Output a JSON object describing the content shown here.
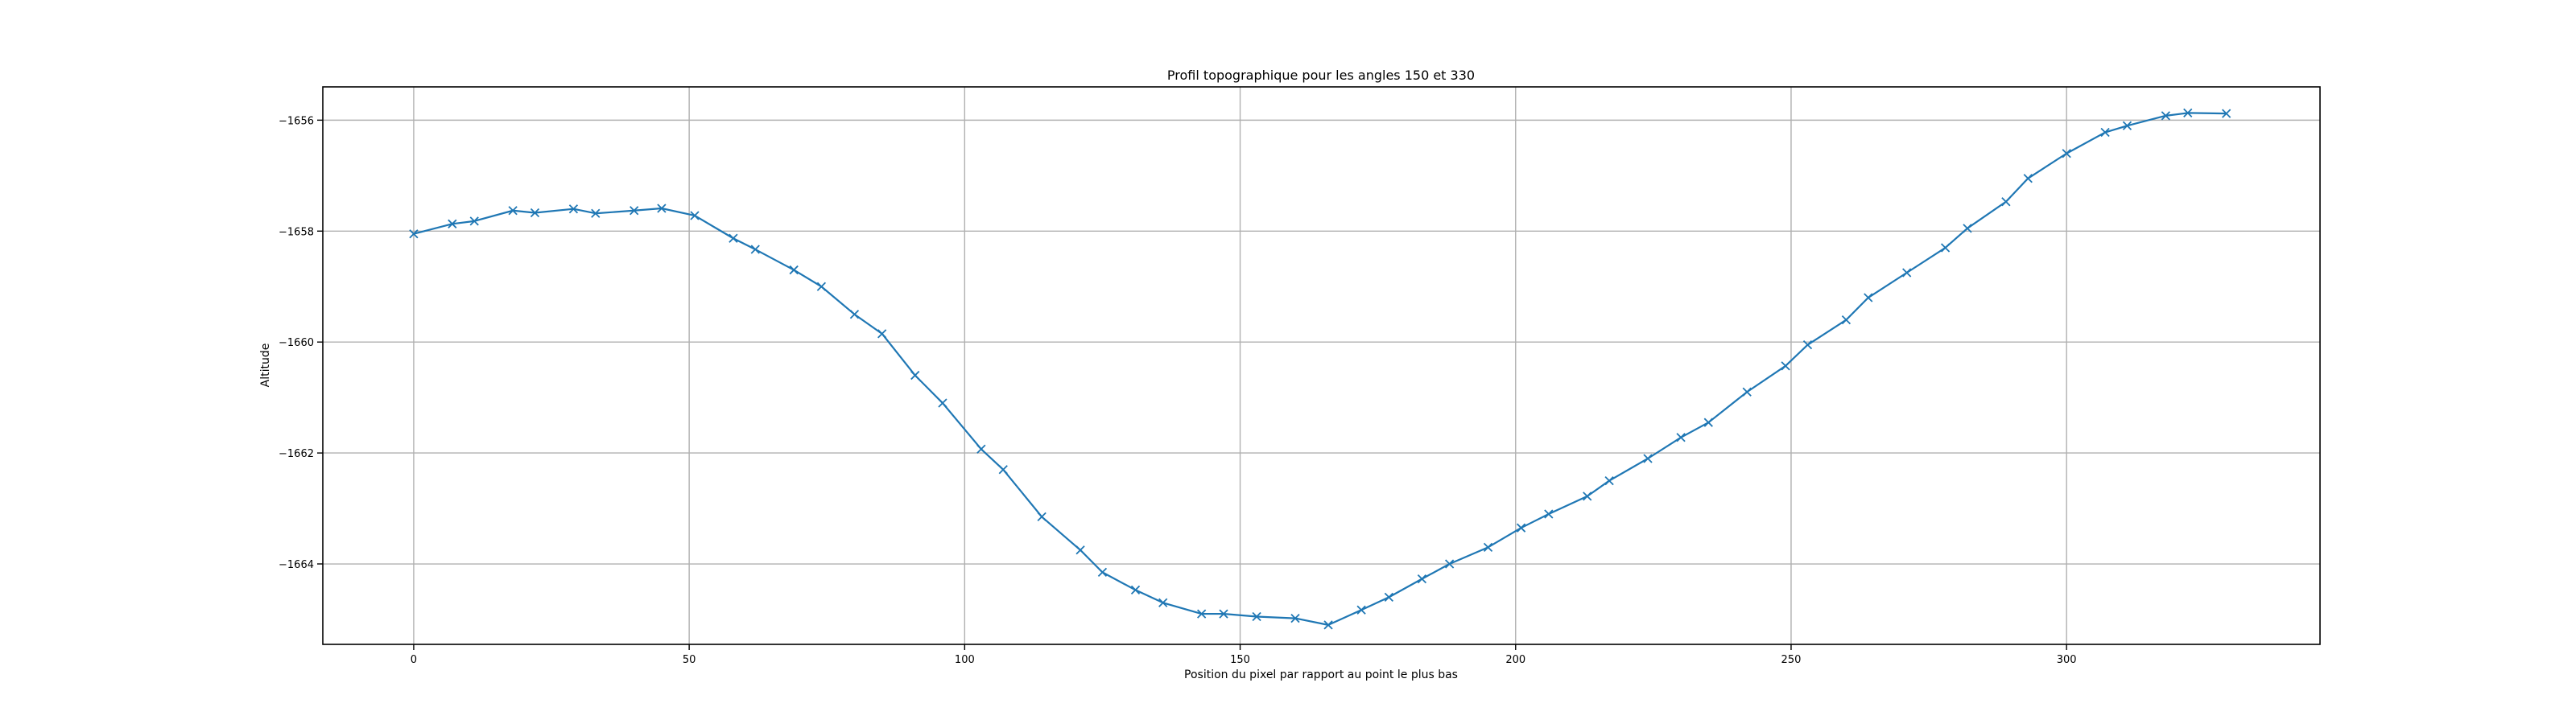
{
  "chart_data": {
    "type": "line",
    "title": "Profil topographique pour les angles 150 et 330",
    "xlabel": "Position du pixel par rapport au point le plus bas",
    "ylabel": "Altitude",
    "xlim": [
      -16.5,
      346
    ],
    "ylim": [
      -1665.45,
      -1655.4
    ],
    "x_ticks": [
      0,
      50,
      100,
      150,
      200,
      250,
      300
    ],
    "y_ticks": [
      -1656,
      -1658,
      -1660,
      -1662,
      -1664
    ],
    "x_tick_labels": [
      "0",
      "50",
      "100",
      "150",
      "200",
      "250",
      "300"
    ],
    "y_tick_labels": [
      "−1656",
      "−1658",
      "−1660",
      "−1662",
      "−1664"
    ],
    "grid": true,
    "marker": "x",
    "color": "#1f77b4",
    "series": [
      {
        "x": [
          0,
          7,
          11,
          18,
          22,
          29,
          33,
          40,
          45,
          51,
          58,
          62,
          69,
          74,
          80,
          85,
          91,
          96,
          103,
          107,
          114,
          121,
          125,
          131,
          136,
          143,
          147,
          153,
          160,
          166,
          172,
          177,
          183,
          188,
          195,
          201,
          206,
          213,
          217,
          224,
          230,
          235,
          242,
          249,
          253,
          260,
          264,
          271,
          278,
          282,
          289,
          293,
          300,
          307,
          311,
          318,
          322,
          329
        ],
        "y": [
          -1658.05,
          -1657.87,
          -1657.82,
          -1657.63,
          -1657.67,
          -1657.6,
          -1657.68,
          -1657.63,
          -1657.59,
          -1657.72,
          -1658.13,
          -1658.33,
          -1658.7,
          -1659.0,
          -1659.5,
          -1659.85,
          -1660.6,
          -1661.1,
          -1661.93,
          -1662.3,
          -1663.15,
          -1663.75,
          -1664.15,
          -1664.47,
          -1664.7,
          -1664.9,
          -1664.9,
          -1664.95,
          -1664.98,
          -1665.1,
          -1664.83,
          -1664.6,
          -1664.27,
          -1664.0,
          -1663.7,
          -1663.35,
          -1663.1,
          -1662.78,
          -1662.5,
          -1662.1,
          -1661.72,
          -1661.45,
          -1660.9,
          -1660.43,
          -1660.05,
          -1659.6,
          -1659.2,
          -1658.75,
          -1658.3,
          -1657.95,
          -1657.47,
          -1657.05,
          -1656.6,
          -1656.22,
          -1656.1,
          -1655.92,
          -1655.87,
          -1655.88
        ]
      }
    ]
  }
}
